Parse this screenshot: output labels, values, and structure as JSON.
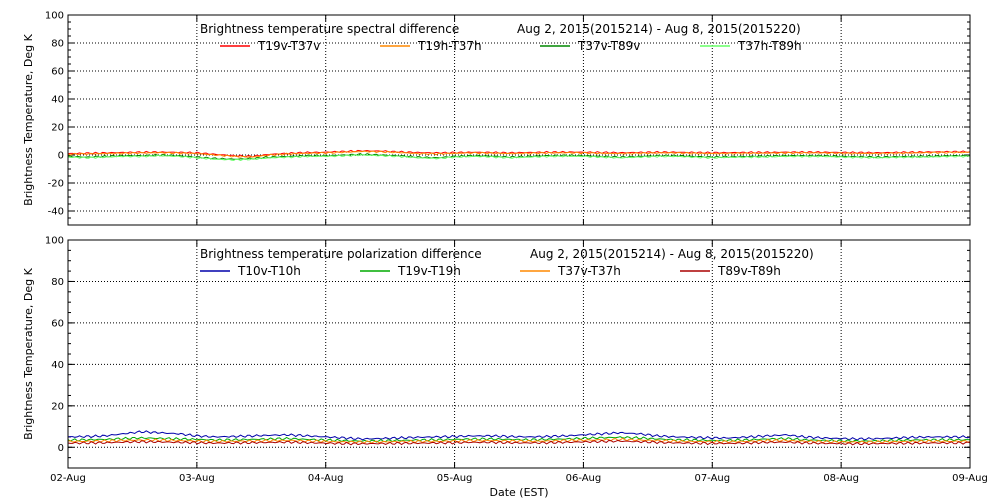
{
  "chart_data": [
    {
      "type": "line",
      "title": "Brightness temperature spectral difference",
      "date_range": "Aug  2, 2015(2015214) - Aug  8, 2015(2015220)",
      "ylabel": "Brightness Temperature, Deg K",
      "xlabel": "",
      "ylim": [
        -50,
        100
      ],
      "yticks": [
        "-40",
        "-20",
        "0",
        "20",
        "40",
        "60",
        "80",
        "100"
      ],
      "ytick_values": [
        -40,
        -20,
        0,
        20,
        40,
        60,
        80,
        100
      ],
      "xticks": [
        "02-Aug",
        "03-Aug",
        "04-Aug",
        "05-Aug",
        "06-Aug",
        "07-Aug",
        "08-Aug",
        "09-Aug"
      ],
      "grid": true,
      "legend_position": "top",
      "series": [
        {
          "name": "T19v-T37v",
          "color": "#ff0000",
          "baseline": 1.5,
          "values": [
            1.0,
            1.2,
            1.5,
            1.8,
            2.0,
            2.1,
            1.9,
            1.5,
            0.5,
            -0.5,
            -1.0,
            0.5,
            1.2,
            1.8,
            2.0,
            2.5,
            3.0,
            2.8,
            2.2,
            1.8,
            1.5,
            1.7,
            2.0,
            1.8,
            1.5,
            1.8,
            2.0,
            2.1,
            2.0,
            1.8,
            1.6,
            1.8,
            2.0,
            2.0,
            1.8,
            1.6,
            1.7,
            1.8,
            1.9,
            2.0,
            2.0,
            2.0,
            1.8,
            1.7,
            1.6,
            1.8,
            2.0,
            2.2,
            2.3,
            2.4
          ]
        },
        {
          "name": "T19h-T37h",
          "color": "#ff8800",
          "baseline": 1.0,
          "values": [
            0.5,
            0.8,
            1.0,
            1.2,
            1.5,
            1.6,
            1.4,
            1.0,
            0.0,
            -1.0,
            -1.5,
            0.0,
            0.8,
            1.2,
            1.5,
            2.0,
            2.5,
            2.3,
            1.8,
            1.0,
            0.8,
            1.2,
            1.5,
            1.3,
            1.0,
            1.2,
            1.5,
            1.6,
            1.5,
            1.2,
            1.0,
            1.2,
            1.5,
            1.5,
            1.2,
            1.0,
            1.1,
            1.2,
            1.3,
            1.5,
            1.5,
            1.5,
            1.2,
            1.1,
            1.0,
            1.2,
            1.5,
            1.7,
            1.8,
            1.9
          ]
        },
        {
          "name": "T37v-T89v",
          "color": "#008800",
          "baseline": -1.0,
          "values": [
            -1.0,
            -1.5,
            -1.0,
            -0.5,
            -0.5,
            0.0,
            -0.5,
            -1.5,
            -2.5,
            -3.0,
            -2.5,
            -1.5,
            -1.0,
            -0.5,
            -0.5,
            0.0,
            0.5,
            0.0,
            -0.5,
            -1.5,
            -2.0,
            -1.0,
            -0.5,
            -0.8,
            -1.5,
            -1.0,
            -0.5,
            -0.3,
            -0.5,
            -1.0,
            -1.5,
            -1.0,
            -0.5,
            -0.5,
            -1.0,
            -1.5,
            -1.2,
            -1.0,
            -0.8,
            -0.5,
            -0.5,
            -0.5,
            -1.0,
            -1.2,
            -1.5,
            -1.2,
            -1.0,
            -0.8,
            -0.5,
            -0.5
          ]
        },
        {
          "name": "T37h-T89h",
          "color": "#66ff66",
          "baseline": -1.5,
          "values": [
            -1.5,
            -2.0,
            -1.5,
            -1.0,
            -1.0,
            -0.5,
            -1.0,
            -2.0,
            -3.0,
            -3.5,
            -3.0,
            -2.0,
            -1.5,
            -1.0,
            -1.0,
            -0.5,
            0.0,
            -0.5,
            -1.0,
            -2.0,
            -2.5,
            -1.5,
            -1.0,
            -1.3,
            -2.0,
            -1.5,
            -1.0,
            -0.8,
            -1.0,
            -1.5,
            -2.0,
            -1.5,
            -1.0,
            -1.0,
            -1.5,
            -2.0,
            -1.7,
            -1.5,
            -1.3,
            -1.0,
            -1.0,
            -1.0,
            -1.5,
            -1.7,
            -2.0,
            -1.7,
            -1.5,
            -1.3,
            -1.0,
            -1.0
          ]
        }
      ]
    },
    {
      "type": "line",
      "title": "Brightness temperature polarization difference",
      "date_range": "Aug  2, 2015(2015214) - Aug  8, 2015(2015220)",
      "ylabel": "Brightness Temperature, Deg K",
      "xlabel": "Date (EST)",
      "ylim": [
        -10,
        100
      ],
      "yticks": [
        "0",
        "20",
        "40",
        "60",
        "80",
        "100"
      ],
      "ytick_values": [
        0,
        20,
        40,
        60,
        80,
        100
      ],
      "xticks": [
        "02-Aug",
        "03-Aug",
        "04-Aug",
        "05-Aug",
        "06-Aug",
        "07-Aug",
        "08-Aug",
        "09-Aug"
      ],
      "grid": true,
      "legend_position": "top",
      "series": [
        {
          "name": "T10v-T10h",
          "color": "#0000aa",
          "values": [
            5.0,
            5.2,
            5.5,
            6.5,
            7.5,
            7.0,
            6.5,
            5.5,
            5.0,
            5.2,
            5.5,
            5.8,
            6.0,
            5.5,
            5.0,
            4.5,
            4.0,
            4.2,
            4.5,
            4.8,
            5.0,
            5.2,
            5.5,
            5.5,
            5.2,
            5.0,
            5.2,
            5.5,
            6.0,
            6.5,
            7.0,
            6.5,
            5.5,
            5.0,
            4.8,
            4.5,
            4.5,
            5.0,
            5.5,
            6.0,
            5.0,
            4.5,
            4.2,
            4.0,
            4.2,
            4.5,
            4.8,
            5.0,
            5.0,
            5.0
          ]
        },
        {
          "name": "T19v-T19h",
          "color": "#00aa00",
          "values": [
            3.5,
            3.6,
            3.8,
            4.2,
            4.5,
            4.3,
            4.0,
            3.8,
            3.5,
            3.6,
            3.8,
            4.0,
            4.2,
            3.8,
            3.5,
            3.2,
            3.0,
            3.1,
            3.3,
            3.5,
            3.6,
            3.8,
            4.0,
            4.0,
            3.8,
            3.6,
            3.8,
            4.0,
            4.3,
            4.6,
            4.8,
            4.5,
            4.0,
            3.6,
            3.5,
            3.3,
            3.3,
            3.6,
            4.0,
            4.2,
            3.6,
            3.3,
            3.1,
            3.0,
            3.1,
            3.3,
            3.5,
            3.6,
            3.6,
            3.6
          ]
        },
        {
          "name": "T37v-T37h",
          "color": "#ff8800",
          "values": [
            2.8,
            2.9,
            3.0,
            3.3,
            3.5,
            3.4,
            3.2,
            3.0,
            2.8,
            2.9,
            3.0,
            3.2,
            3.3,
            3.0,
            2.8,
            2.6,
            2.5,
            2.6,
            2.7,
            2.8,
            2.9,
            3.0,
            3.2,
            3.2,
            3.0,
            2.9,
            3.0,
            3.2,
            3.4,
            3.6,
            3.8,
            3.5,
            3.2,
            2.9,
            2.8,
            2.7,
            2.7,
            2.9,
            3.2,
            3.3,
            2.9,
            2.7,
            2.6,
            2.5,
            2.6,
            2.7,
            2.8,
            2.9,
            2.9,
            2.9
          ]
        },
        {
          "name": "T89v-T89h",
          "color": "#aa0000",
          "values": [
            2.0,
            2.1,
            2.2,
            2.5,
            2.7,
            2.6,
            2.4,
            2.2,
            2.0,
            2.1,
            2.2,
            2.4,
            2.5,
            2.2,
            2.0,
            1.8,
            1.7,
            1.8,
            1.9,
            2.0,
            2.1,
            2.2,
            2.4,
            2.4,
            2.2,
            2.1,
            2.2,
            2.4,
            2.6,
            2.8,
            3.0,
            2.7,
            2.4,
            2.1,
            2.0,
            1.9,
            1.9,
            2.1,
            2.4,
            2.5,
            2.1,
            1.9,
            1.8,
            1.7,
            1.8,
            1.9,
            2.0,
            2.1,
            2.1,
            2.1
          ]
        }
      ]
    }
  ]
}
